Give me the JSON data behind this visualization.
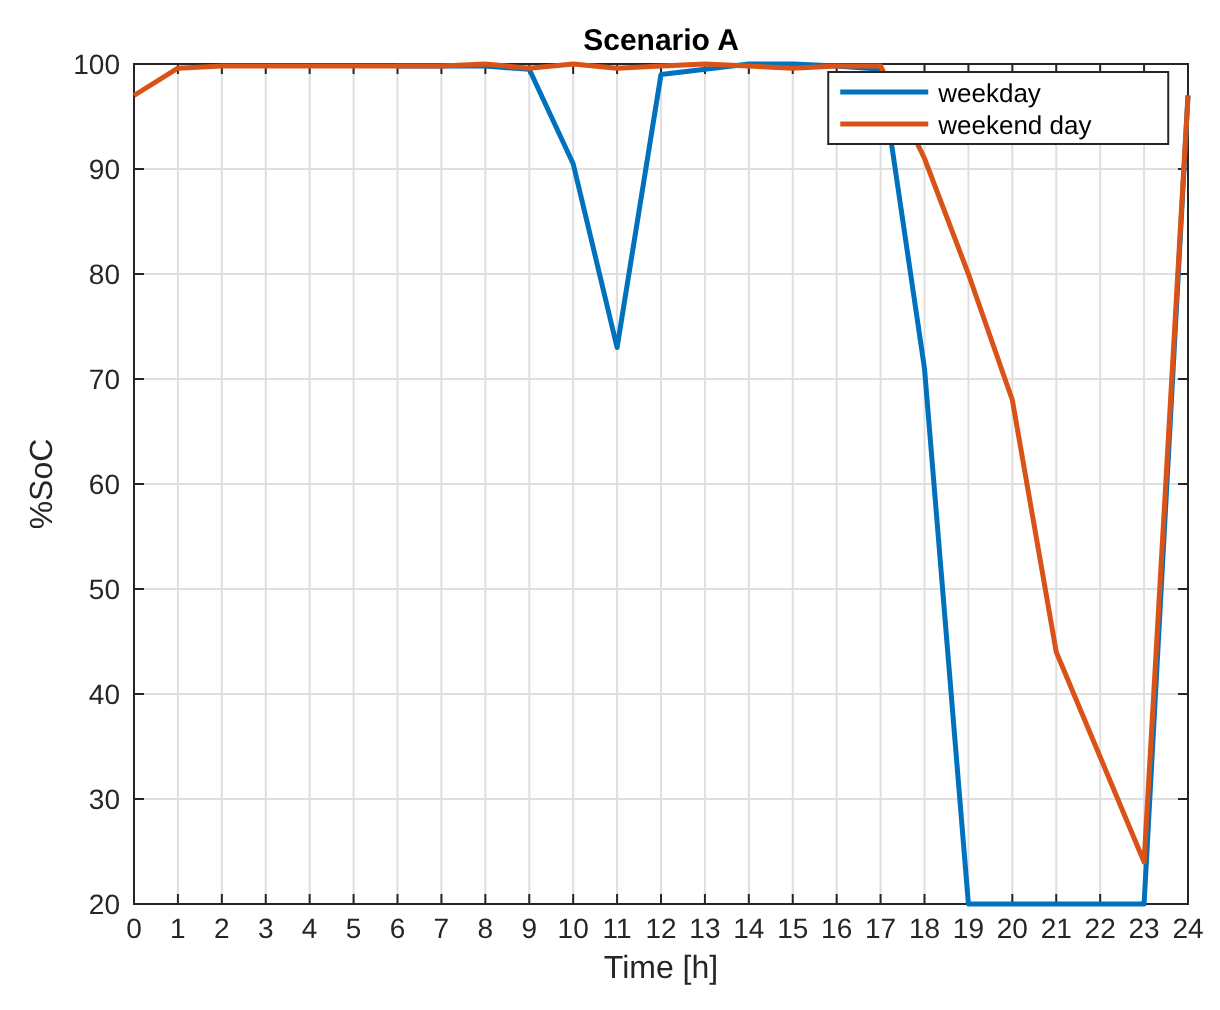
{
  "chart_data": {
    "type": "line",
    "title": "Scenario A",
    "xlabel": "Time [h]",
    "ylabel": "%SoC",
    "x": [
      0,
      1,
      2,
      3,
      4,
      5,
      6,
      7,
      8,
      9,
      10,
      11,
      12,
      13,
      14,
      15,
      16,
      17,
      18,
      19,
      20,
      21,
      22,
      23,
      24
    ],
    "series": [
      {
        "name": "weekday",
        "color": "#0072bd",
        "values": [
          null,
          null,
          null,
          null,
          null,
          null,
          99.8,
          99.8,
          99.8,
          99.5,
          90.5,
          73,
          99,
          99.5,
          100,
          100,
          99.8,
          99.5,
          71,
          20,
          20,
          20,
          20,
          20,
          97
        ]
      },
      {
        "name": "weekend day",
        "color": "#d95319",
        "values": [
          97,
          99.6,
          99.8,
          99.8,
          99.8,
          99.8,
          99.8,
          99.8,
          100,
          99.6,
          100,
          99.6,
          99.8,
          100,
          99.8,
          99.6,
          99.8,
          99.8,
          91,
          80,
          68,
          44,
          34,
          24,
          97
        ]
      }
    ],
    "xlim": [
      0,
      24
    ],
    "xticks": [
      0,
      1,
      2,
      3,
      4,
      5,
      6,
      7,
      8,
      9,
      10,
      11,
      12,
      13,
      14,
      15,
      16,
      17,
      18,
      19,
      20,
      21,
      22,
      23,
      24
    ],
    "ylim": [
      20,
      100
    ],
    "yticks": [
      20,
      30,
      40,
      50,
      60,
      70,
      80,
      90,
      100
    ],
    "grid": true,
    "legend": "top right",
    "marker": "none",
    "line_style": "solid"
  }
}
